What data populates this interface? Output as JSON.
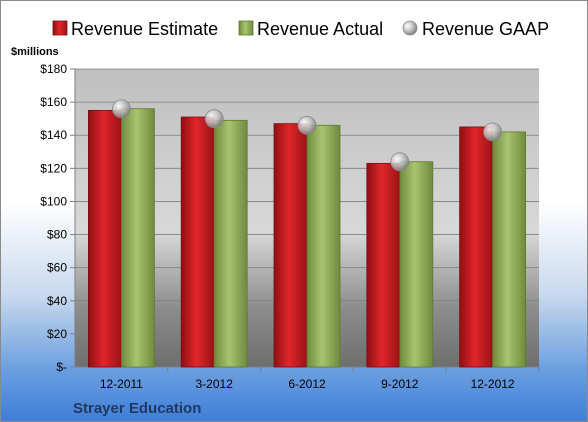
{
  "chart_data": {
    "type": "bar",
    "categories": [
      "12-2011",
      "3-2012",
      "6-2012",
      "9-2012",
      "12-2012"
    ],
    "series": [
      {
        "name": "Revenue Estimate",
        "values": [
          155,
          151,
          147,
          123,
          145
        ],
        "color": "#c0181c"
      },
      {
        "name": "Revenue Actual",
        "values": [
          156,
          149,
          146,
          124,
          142
        ],
        "color": "#8fae5a"
      },
      {
        "name": "Revenue GAAP",
        "values": [
          156,
          150,
          146,
          124,
          142
        ],
        "color": "#b9b9b9",
        "marker": "circle"
      }
    ],
    "ylim": [
      0,
      180
    ],
    "yticks": [
      0,
      20,
      40,
      60,
      80,
      100,
      120,
      140,
      160,
      180
    ],
    "ytick_labels": [
      "$-",
      "$20",
      "$40",
      "$60",
      "$80",
      "$100",
      "$120",
      "$140",
      "$160",
      "$180"
    ],
    "ylabel": "$millions",
    "footer": "Strayer Education",
    "legend_position": "top",
    "grid": true
  }
}
